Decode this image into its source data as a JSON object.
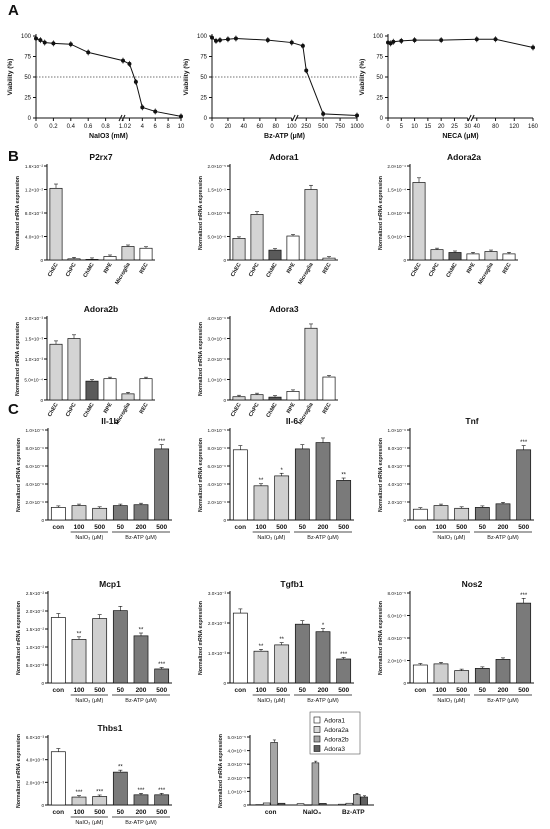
{
  "panel_letters": [
    "A",
    "B",
    "C"
  ],
  "chart_data": [
    {
      "id": "a1",
      "panel": "A",
      "type": "line",
      "ylabel": "Viability (%)",
      "xlabel": "NaIO3 (mM)",
      "ylim": [
        0,
        100
      ],
      "yticks": [
        0,
        25,
        50,
        75,
        100
      ],
      "xticks": [
        "0",
        "0.2",
        "0.4",
        "0.6",
        "0.8",
        "1.0",
        "2",
        "4",
        "6",
        "8",
        "10"
      ],
      "reference_line": 50,
      "x": [
        0,
        0.05,
        0.1,
        0.2,
        0.4,
        0.6,
        1.0,
        2,
        3,
        4,
        6,
        10
      ],
      "values": [
        97,
        95,
        92,
        91,
        90,
        80,
        70,
        66,
        44,
        13,
        8,
        2
      ]
    },
    {
      "id": "a2",
      "panel": "A",
      "type": "line",
      "ylabel": "Viability (%)",
      "xlabel": "Bz-ATP (μM)",
      "ylim": [
        0,
        100
      ],
      "yticks": [
        0,
        25,
        50,
        75,
        100
      ],
      "xticks": [
        "0",
        "20",
        "40",
        "60",
        "80",
        "100",
        "250",
        "500",
        "750",
        "1000"
      ],
      "reference_line": 50,
      "x": [
        0,
        5,
        10,
        20,
        30,
        70,
        100,
        200,
        250,
        500,
        1000
      ],
      "values": [
        98,
        94,
        95,
        96,
        97,
        95,
        92,
        88,
        58,
        5,
        3
      ]
    },
    {
      "id": "a3",
      "panel": "A",
      "type": "line",
      "ylabel": "Viability (%)",
      "xlabel": "NECA (μM)",
      "ylim": [
        0,
        100
      ],
      "yticks": [
        0,
        25,
        50,
        75,
        100
      ],
      "xticks": [
        "0",
        "5",
        "10",
        "15",
        "20",
        "25",
        "30",
        "40",
        "80",
        "120",
        "160"
      ],
      "x": [
        0,
        1,
        2,
        5,
        10,
        20,
        40,
        80,
        160
      ],
      "values": [
        92,
        91,
        93,
        94,
        95,
        95,
        96,
        96,
        86
      ]
    },
    {
      "id": "b1",
      "panel": "B",
      "type": "bar",
      "title": "P2rx7",
      "ylabel": "Normalized mRNA expression",
      "ylim": [
        0,
        0.016
      ],
      "yticks": [
        "0",
        "4.0×10⁻³",
        "8.0×10⁻³",
        "1.2×10⁻²",
        "1.6×10⁻²"
      ],
      "categories": [
        "ChEC",
        "ChPC",
        "ChMC",
        "RPE",
        "Microglia",
        "REC"
      ],
      "values": [
        0.0122,
        0.0002,
        0.0001,
        0.0006,
        0.0023,
        0.002
      ]
    },
    {
      "id": "b2",
      "panel": "B",
      "type": "bar",
      "title": "Adora1",
      "ylabel": "Normalized mRNA expression",
      "ylim": [
        0,
        2e-05
      ],
      "yticks": [
        "0",
        "5.0×10⁻⁶",
        "1.0×10⁻⁵",
        "1.5×10⁻⁵",
        "2.0×10⁻⁵"
      ],
      "categories": [
        "ChEC",
        "ChPC",
        "ChMC",
        "RPE",
        "Microglia",
        "REC"
      ],
      "values": [
        4.6e-06,
        9.7e-06,
        2.1e-06,
        5.1e-06,
        1.5e-05,
        4e-07
      ]
    },
    {
      "id": "b3",
      "panel": "B",
      "type": "bar",
      "title": "Adora2a",
      "ylabel": "Normalized mRNA expression",
      "ylim": [
        0,
        0.0002
      ],
      "yticks": [
        "0",
        "5.0×10⁻⁵",
        "1.0×10⁻⁴",
        "1.5×10⁻⁴",
        "2.0×10⁻⁴"
      ],
      "categories": [
        "ChEC",
        "ChPC",
        "ChMC",
        "RPE",
        "Microglia",
        "REC"
      ],
      "values": [
        0.000165,
        2.2e-05,
        1.6e-05,
        1.3e-05,
        1.8e-05,
        1.3e-05
      ]
    },
    {
      "id": "b4",
      "panel": "B",
      "type": "bar",
      "title": "Adora2b",
      "ylabel": "Normalized mRNA expression",
      "ylim": [
        0,
        0.002
      ],
      "yticks": [
        "0",
        "5.0×10⁻⁴",
        "1.0×10⁻³",
        "1.5×10⁻³",
        "2.0×10⁻³"
      ],
      "categories": [
        "ChEC",
        "ChPC",
        "ChMC",
        "RPE",
        "Microglia",
        "REC"
      ],
      "values": [
        0.00136,
        0.0015,
        0.00046,
        0.00052,
        0.00015,
        0.00052
      ]
    },
    {
      "id": "b5",
      "panel": "B",
      "type": "bar",
      "title": "Adora3",
      "ylabel": "Normalized mRNA expression",
      "ylim": [
        0,
        4e-06
      ],
      "yticks": [
        "0",
        "1.0×10⁻⁶",
        "2.0×10⁻⁶",
        "3.0×10⁻⁶",
        "4.0×10⁻⁶"
      ],
      "categories": [
        "ChEC",
        "ChPC",
        "ChMC",
        "RPE",
        "Microglia",
        "REC"
      ],
      "values": [
        1.6e-07,
        2.6e-07,
        1.4e-07,
        4.2e-07,
        3.5e-06,
        1.12e-06
      ]
    },
    {
      "id": "c1",
      "panel": "C",
      "type": "bar",
      "title": "Il-1b",
      "ylabel": "Normalized mRNA expression",
      "ylim": [
        0,
        1e-05
      ],
      "yticks": [
        "0",
        "2.0×10⁻⁶",
        "4.0×10⁻⁶",
        "6.0×10⁻⁶",
        "8.0×10⁻⁶",
        "1.0×10⁻⁵"
      ],
      "categories": [
        "con",
        "100",
        "500",
        "50",
        "200",
        "500"
      ],
      "groups": [
        {
          "label": "NaIO₃ (μM)",
          "span": [
            1,
            2
          ]
        },
        {
          "label": "Bz-ATP (μM)",
          "span": [
            3,
            5
          ]
        }
      ],
      "values": [
        1.4e-06,
        1.6e-06,
        1.3e-06,
        1.6e-06,
        1.7e-06,
        7.9e-06
      ],
      "significance": [
        "",
        "",
        "",
        "",
        "",
        "***"
      ]
    },
    {
      "id": "c2",
      "panel": "C",
      "type": "bar",
      "title": "Il-6",
      "ylabel": "Normalized mRNA expression",
      "ylim": [
        0,
        1e-05
      ],
      "yticks": [
        "0",
        "2.0×10⁻⁶",
        "4.0×10⁻⁶",
        "6.0×10⁻⁶",
        "8.0×10⁻⁶",
        "1.0×10⁻⁵"
      ],
      "categories": [
        "con",
        "100",
        "500",
        "50",
        "200",
        "500"
      ],
      "groups": [
        {
          "label": "NaIO₃ (μM)",
          "span": [
            1,
            2
          ]
        },
        {
          "label": "Bz-ATP (μM)",
          "span": [
            3,
            5
          ]
        }
      ],
      "values": [
        7.8e-06,
        3.8e-06,
        4.9e-06,
        7.9e-06,
        8.6e-06,
        4.4e-06
      ],
      "significance": [
        "",
        "**",
        "*",
        "",
        "",
        "**"
      ]
    },
    {
      "id": "c3",
      "panel": "C",
      "type": "bar",
      "title": "Tnf",
      "ylabel": "Normalized mRNA expression",
      "ylim": [
        0,
        1e-06
      ],
      "yticks": [
        "0",
        "2.0×10⁻⁷",
        "4.0×10⁻⁷",
        "6.0×10⁻⁷",
        "8.0×10⁻⁷",
        "1.0×10⁻⁶"
      ],
      "categories": [
        "con",
        "100",
        "500",
        "50",
        "200",
        "500"
      ],
      "groups": [
        {
          "label": "NaIO₃ (μM)",
          "span": [
            1,
            2
          ]
        },
        {
          "label": "Bz-ATP (μM)",
          "span": [
            3,
            5
          ]
        }
      ],
      "values": [
        1.2e-07,
        1.6e-07,
        1.3e-07,
        1.4e-07,
        1.8e-07,
        7.8e-07
      ],
      "significance": [
        "",
        "",
        "",
        "",
        "",
        "***"
      ]
    },
    {
      "id": "c4",
      "panel": "C",
      "type": "bar",
      "title": "Mcp1",
      "ylabel": "Normalized mRNA expression",
      "ylim": [
        0,
        0.025
      ],
      "yticks": [
        "0",
        "5.0×10⁻³",
        "1.0×10⁻²",
        "1.5×10⁻²",
        "2.0×10⁻²",
        "2.5×10⁻²"
      ],
      "categories": [
        "con",
        "100",
        "500",
        "50",
        "200",
        "500"
      ],
      "groups": [
        {
          "label": "NaIO₃ (μM)",
          "span": [
            1,
            2
          ]
        },
        {
          "label": "Bz-ATP (μM)",
          "span": [
            3,
            5
          ]
        }
      ],
      "values": [
        0.0182,
        0.0121,
        0.0179,
        0.0201,
        0.0131,
        0.0039
      ],
      "significance": [
        "",
        "**",
        "",
        "",
        "**",
        "***"
      ]
    },
    {
      "id": "c5",
      "panel": "C",
      "type": "bar",
      "title": "Tgfb1",
      "ylabel": "Normalized mRNA expression",
      "ylim": [
        0,
        0.003
      ],
      "yticks": [
        "0",
        "1.0×10⁻³",
        "2.0×10⁻³",
        "3.0×10⁻³"
      ],
      "categories": [
        "con",
        "100",
        "500",
        "50",
        "200",
        "500"
      ],
      "groups": [
        {
          "label": "NaIO₃ (μM)",
          "span": [
            1,
            2
          ]
        },
        {
          "label": "Bz-ATP (μM)",
          "span": [
            3,
            5
          ]
        }
      ],
      "values": [
        0.00233,
        0.00106,
        0.00127,
        0.00196,
        0.00171,
        0.0008
      ],
      "significance": [
        "",
        "**",
        "**",
        "",
        "*",
        "***"
      ]
    },
    {
      "id": "c6",
      "panel": "C",
      "type": "bar",
      "title": "Nos2",
      "ylabel": "Normalized mRNA expression",
      "ylim": [
        0,
        8e-05
      ],
      "yticks": [
        "0",
        "2.0×10⁻⁵",
        "4.0×10⁻⁵",
        "6.0×10⁻⁵",
        "8.0×10⁻⁵"
      ],
      "categories": [
        "con",
        "100",
        "500",
        "50",
        "200",
        "500"
      ],
      "groups": [
        {
          "label": "NaIO₃ (μM)",
          "span": [
            1,
            2
          ]
        },
        {
          "label": "Bz-ATP (μM)",
          "span": [
            3,
            5
          ]
        }
      ],
      "values": [
        1.6e-05,
        1.7e-05,
        1.1e-05,
        1.3e-05,
        2.1e-05,
        7.1e-05
      ],
      "significance": [
        "",
        "",
        "",
        "",
        "",
        "***"
      ]
    },
    {
      "id": "c7",
      "panel": "C",
      "type": "bar",
      "title": "Thbs1",
      "ylabel": "Normalized mRNA expression",
      "ylim": [
        0,
        0.006
      ],
      "yticks": [
        "0",
        "2.0×10⁻³",
        "4.0×10⁻³",
        "6.0×10⁻³"
      ],
      "categories": [
        "con",
        "100",
        "500",
        "50",
        "200",
        "500"
      ],
      "groups": [
        {
          "label": "NaIO₃ (μM)",
          "span": [
            1,
            2
          ]
        },
        {
          "label": "Bz-ATP (μM)",
          "span": [
            3,
            5
          ]
        }
      ],
      "values": [
        0.0047,
        0.0007,
        0.00075,
        0.0029,
        0.0009,
        0.0009
      ],
      "significance": [
        "",
        "***",
        "***",
        "**",
        "***",
        "***"
      ]
    },
    {
      "id": "c8",
      "panel": "C",
      "type": "bar",
      "ylabel": "Normalized mRNA expression",
      "ylim": [
        0,
        5e-05
      ],
      "yticks": [
        "0",
        "1.0×10⁻⁵",
        "2.0×10⁻⁵",
        "3.0×10⁻⁵",
        "4.0×10⁻⁵",
        "5.0×10⁻⁵"
      ],
      "categories": [
        "con",
        "NaIO₃",
        "Bz-ATP"
      ],
      "legend_position": "top-right",
      "series": [
        {
          "name": "Adora1",
          "values": [
            3e-07,
            1e-06,
            6e-07
          ]
        },
        {
          "name": "Adora2a",
          "values": [
            1.5e-06,
            2e-07,
            1.3e-06
          ]
        },
        {
          "name": "Adora2b",
          "values": [
            4.6e-05,
            3.1e-05,
            7.7e-06
          ]
        },
        {
          "name": "Adora3",
          "values": [
            1.3e-06,
            1.2e-06,
            5.9e-06
          ]
        }
      ]
    }
  ]
}
